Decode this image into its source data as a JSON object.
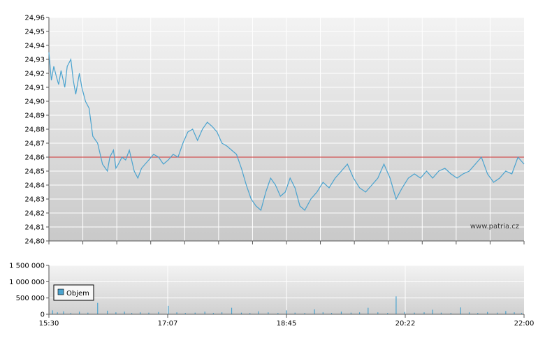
{
  "chart_data": [
    {
      "type": "line",
      "title": "",
      "xlabel": "",
      "ylabel": "",
      "ylim": [
        24.8,
        24.96
      ],
      "y_ticks": [
        "24,96",
        "24,95",
        "24,94",
        "24,93",
        "24,92",
        "24,91",
        "24,90",
        "24,89",
        "24,88",
        "24,87",
        "24,86",
        "24,85",
        "24,84",
        "24,83",
        "24,82",
        "24,81",
        "24,80"
      ],
      "y_tick_values": [
        24.96,
        24.95,
        24.94,
        24.93,
        24.92,
        24.91,
        24.9,
        24.89,
        24.88,
        24.87,
        24.86,
        24.85,
        24.84,
        24.83,
        24.82,
        24.81,
        24.8
      ],
      "x_tick_labels": [
        "15:30",
        "17:07",
        "18:45",
        "20:22",
        "22:00"
      ],
      "x_range": [
        "15:30",
        "22:00"
      ],
      "reference_line": {
        "value": 24.86,
        "color": "#d03030"
      },
      "line_color": "#4aa3cf",
      "grid": true,
      "watermark": "www.patria.cz",
      "series": [
        {
          "x": [
            "15:30",
            "15:32",
            "15:34",
            "15:36",
            "15:38",
            "15:40",
            "15:43",
            "15:45",
            "15:48",
            "15:50",
            "15:52",
            "15:55",
            "15:57",
            "16:00",
            "16:03",
            "16:06",
            "16:10",
            "16:14",
            "16:18",
            "16:20",
            "16:23",
            "16:25",
            "16:27",
            "16:30",
            "16:33",
            "16:36",
            "16:40",
            "16:43",
            "16:46",
            "16:49",
            "16:52",
            "16:56",
            "17:00",
            "17:04",
            "17:08",
            "17:12",
            "17:16",
            "17:20",
            "17:24",
            "17:28",
            "17:32",
            "17:36",
            "17:40",
            "17:44",
            "17:48",
            "17:52",
            "17:56",
            "18:00",
            "18:04",
            "18:08",
            "18:12",
            "18:16",
            "18:20",
            "18:24",
            "18:28",
            "18:32",
            "18:36",
            "18:40",
            "18:44",
            "18:48",
            "18:52",
            "18:56",
            "19:00",
            "19:05",
            "19:10",
            "19:15",
            "19:20",
            "19:25",
            "19:30",
            "19:35",
            "19:40",
            "19:45",
            "19:50",
            "19:55",
            "20:00",
            "20:05",
            "20:10",
            "20:15",
            "20:20",
            "20:25",
            "20:30",
            "20:35",
            "20:40",
            "20:45",
            "20:50",
            "20:55",
            "21:00",
            "21:05",
            "21:10",
            "21:15",
            "21:20",
            "21:25",
            "21:30",
            "21:35",
            "21:40",
            "21:45",
            "21:50",
            "21:55",
            "22:00"
          ],
          "y": [
            24.935,
            24.915,
            24.925,
            24.918,
            24.912,
            24.922,
            24.91,
            24.925,
            24.93,
            24.915,
            24.905,
            24.92,
            24.91,
            24.9,
            24.895,
            24.875,
            24.87,
            24.855,
            24.85,
            24.86,
            24.865,
            24.852,
            24.855,
            24.86,
            24.858,
            24.865,
            24.85,
            24.845,
            24.852,
            24.855,
            24.858,
            24.862,
            24.86,
            24.855,
            24.858,
            24.862,
            24.86,
            24.87,
            24.878,
            24.88,
            24.872,
            24.88,
            24.885,
            24.882,
            24.878,
            24.87,
            24.868,
            24.865,
            24.862,
            24.852,
            24.84,
            24.83,
            24.825,
            24.822,
            24.835,
            24.845,
            24.84,
            24.832,
            24.835,
            24.845,
            24.838,
            24.825,
            24.822,
            24.83,
            24.835,
            24.842,
            24.838,
            24.845,
            24.85,
            24.855,
            24.845,
            24.838,
            24.835,
            24.84,
            24.845,
            24.855,
            24.845,
            24.83,
            24.838,
            24.845,
            24.848,
            24.845,
            24.85,
            24.845,
            24.85,
            24.852,
            24.848,
            24.845,
            24.848,
            24.85,
            24.855,
            24.86,
            24.848,
            24.842,
            24.845,
            24.85,
            24.848,
            24.86,
            24.855
          ]
        }
      ]
    },
    {
      "type": "bar",
      "title": "",
      "xlabel": "",
      "ylabel": "",
      "ylim": [
        0,
        1500000
      ],
      "y_ticks": [
        "1 500 000",
        "1 000 000",
        "500 000",
        "0"
      ],
      "y_tick_values": [
        1500000,
        1000000,
        500000,
        0
      ],
      "x_tick_labels": [
        "15:30",
        "17:07",
        "18:45",
        "20:22",
        "22:00"
      ],
      "bar_color": "#4aa3cf",
      "legend": {
        "label": "Objem",
        "placement": "top-left"
      },
      "grid": true,
      "series": [
        {
          "name": "Objem",
          "x": [
            "15:33",
            "15:37",
            "15:42",
            "15:48",
            "15:55",
            "16:02",
            "16:10",
            "16:18",
            "16:25",
            "16:32",
            "16:38",
            "16:45",
            "16:52",
            "17:00",
            "17:08",
            "17:15",
            "17:22",
            "17:30",
            "17:38",
            "17:45",
            "17:52",
            "18:00",
            "18:08",
            "18:15",
            "18:22",
            "18:30",
            "18:38",
            "18:45",
            "18:52",
            "19:00",
            "19:08",
            "19:15",
            "19:22",
            "19:30",
            "19:38",
            "19:45",
            "19:52",
            "20:00",
            "20:08",
            "20:15",
            "20:22",
            "20:30",
            "20:38",
            "20:45",
            "20:52",
            "21:00",
            "21:08",
            "21:15",
            "21:22",
            "21:30",
            "21:38",
            "21:45",
            "21:52",
            "21:58"
          ],
          "y": [
            120000,
            60000,
            90000,
            40000,
            80000,
            50000,
            350000,
            110000,
            60000,
            80000,
            40000,
            60000,
            50000,
            70000,
            260000,
            60000,
            40000,
            50000,
            80000,
            40000,
            60000,
            200000,
            50000,
            40000,
            90000,
            60000,
            40000,
            120000,
            50000,
            40000,
            150000,
            60000,
            40000,
            80000,
            50000,
            60000,
            200000,
            60000,
            40000,
            550000,
            70000,
            50000,
            60000,
            140000,
            50000,
            40000,
            210000,
            60000,
            40000,
            70000,
            50000,
            100000,
            60000,
            40000
          ]
        }
      ]
    }
  ]
}
